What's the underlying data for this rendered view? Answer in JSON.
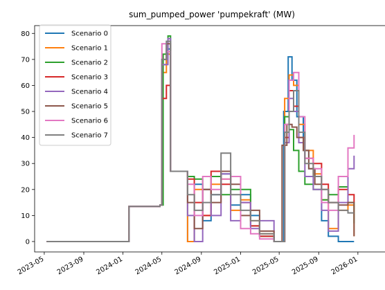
{
  "chart_data": {
    "type": "line",
    "title": "sum_pumped_power 'pumpekraft' (MW)",
    "xlabel": "",
    "ylabel": "",
    "x_ticks": [
      "2023-05",
      "2023-09",
      "2024-01",
      "2024-05",
      "2024-09",
      "2025-01",
      "2025-05",
      "2025-09",
      "2026-01"
    ],
    "y_ticks": [
      0,
      10,
      20,
      30,
      40,
      50,
      60,
      70,
      80
    ],
    "xlim": [
      "2023-04-01",
      "2026-01-25"
    ],
    "ylim": [
      -4,
      83
    ],
    "grid": false,
    "legend_position": "top-left",
    "series": [
      {
        "name": "Scenario 0",
        "color": "#1f77b4",
        "points": [
          [
            "2023-05-08",
            0
          ],
          [
            "2024-01-10",
            0
          ],
          [
            "2024-01-20",
            13.5
          ],
          [
            "2024-04-25",
            14
          ],
          [
            "2024-05-01",
            68
          ],
          [
            "2024-05-15",
            74
          ],
          [
            "2024-05-28",
            27
          ],
          [
            "2024-07-10",
            27
          ],
          [
            "2024-07-20",
            0
          ],
          [
            "2024-08-10",
            22
          ],
          [
            "2024-09-05",
            8
          ],
          [
            "2024-10-01",
            18
          ],
          [
            "2024-11-01",
            26
          ],
          [
            "2024-12-01",
            14
          ],
          [
            "2025-01-01",
            18
          ],
          [
            "2025-02-01",
            10
          ],
          [
            "2025-03-01",
            2
          ],
          [
            "2025-04-15",
            0
          ],
          [
            "2025-05-01",
            0
          ],
          [
            "2025-05-15",
            50
          ],
          [
            "2025-05-29",
            71
          ],
          [
            "2025-06-10",
            62
          ],
          [
            "2025-06-25",
            48
          ],
          [
            "2025-07-15",
            35
          ],
          [
            "2025-08-01",
            28
          ],
          [
            "2025-08-20",
            25
          ],
          [
            "2025-09-10",
            8
          ],
          [
            "2025-10-01",
            2
          ],
          [
            "2025-11-01",
            0
          ],
          [
            "2025-12-10",
            0
          ],
          [
            "2025-12-20",
            0
          ]
        ]
      },
      {
        "name": "Scenario 1",
        "color": "#ff7f0e",
        "points": [
          [
            "2023-05-08",
            0
          ],
          [
            "2024-01-10",
            0
          ],
          [
            "2024-01-20",
            13.5
          ],
          [
            "2024-04-25",
            14
          ],
          [
            "2024-05-01",
            65
          ],
          [
            "2024-05-15",
            72
          ],
          [
            "2024-05-28",
            27
          ],
          [
            "2024-07-10",
            27
          ],
          [
            "2024-07-20",
            0
          ],
          [
            "2024-08-10",
            20
          ],
          [
            "2024-09-05",
            10
          ],
          [
            "2024-10-01",
            22
          ],
          [
            "2024-11-01",
            24
          ],
          [
            "2024-12-01",
            12
          ],
          [
            "2025-01-01",
            16
          ],
          [
            "2025-02-01",
            8
          ],
          [
            "2025-03-01",
            3
          ],
          [
            "2025-04-15",
            0
          ],
          [
            "2025-05-10",
            0
          ],
          [
            "2025-05-18",
            55
          ],
          [
            "2025-06-01",
            64
          ],
          [
            "2025-06-15",
            60
          ],
          [
            "2025-07-01",
            45
          ],
          [
            "2025-07-20",
            35
          ],
          [
            "2025-08-15",
            26
          ],
          [
            "2025-09-10",
            16
          ],
          [
            "2025-10-01",
            5
          ],
          [
            "2025-11-01",
            12
          ],
          [
            "2025-12-01",
            14
          ],
          [
            "2025-12-20",
            2
          ]
        ]
      },
      {
        "name": "Scenario 2",
        "color": "#2ca02c",
        "points": [
          [
            "2023-05-08",
            0
          ],
          [
            "2024-01-10",
            0
          ],
          [
            "2024-01-20",
            13.5
          ],
          [
            "2024-04-25",
            14
          ],
          [
            "2024-05-05",
            72
          ],
          [
            "2024-05-20",
            79
          ],
          [
            "2024-05-28",
            27
          ],
          [
            "2024-07-10",
            27
          ],
          [
            "2024-07-20",
            25
          ],
          [
            "2024-08-10",
            24
          ],
          [
            "2024-09-05",
            20
          ],
          [
            "2024-10-01",
            25
          ],
          [
            "2024-11-01",
            18
          ],
          [
            "2024-12-01",
            20
          ],
          [
            "2025-01-01",
            20
          ],
          [
            "2025-02-01",
            6
          ],
          [
            "2025-03-01",
            2
          ],
          [
            "2025-04-15",
            0
          ],
          [
            "2025-05-10",
            0
          ],
          [
            "2025-05-18",
            48
          ],
          [
            "2025-06-01",
            43
          ],
          [
            "2025-06-15",
            35
          ],
          [
            "2025-07-01",
            27
          ],
          [
            "2025-07-20",
            22
          ],
          [
            "2025-08-15",
            20
          ],
          [
            "2025-09-10",
            16
          ],
          [
            "2025-10-01",
            18
          ],
          [
            "2025-11-01",
            21
          ],
          [
            "2025-12-01",
            15
          ],
          [
            "2025-12-20",
            7
          ]
        ]
      },
      {
        "name": "Scenario 3",
        "color": "#d62728",
        "points": [
          [
            "2023-05-08",
            0
          ],
          [
            "2024-01-10",
            0
          ],
          [
            "2024-01-20",
            13.5
          ],
          [
            "2024-04-25",
            14
          ],
          [
            "2024-05-01",
            55
          ],
          [
            "2024-05-15",
            60
          ],
          [
            "2024-05-28",
            27
          ],
          [
            "2024-07-10",
            27
          ],
          [
            "2024-07-20",
            24
          ],
          [
            "2024-08-10",
            15
          ],
          [
            "2024-09-05",
            10
          ],
          [
            "2024-10-01",
            27
          ],
          [
            "2024-11-01",
            22
          ],
          [
            "2024-12-01",
            25
          ],
          [
            "2025-01-01",
            15
          ],
          [
            "2025-02-01",
            6
          ],
          [
            "2025-03-01",
            2
          ],
          [
            "2025-04-15",
            0
          ],
          [
            "2025-05-10",
            0
          ],
          [
            "2025-05-18",
            40
          ],
          [
            "2025-06-01",
            58
          ],
          [
            "2025-06-15",
            52
          ],
          [
            "2025-07-01",
            40
          ],
          [
            "2025-07-20",
            32
          ],
          [
            "2025-08-15",
            30
          ],
          [
            "2025-09-10",
            22
          ],
          [
            "2025-10-01",
            15
          ],
          [
            "2025-11-01",
            20
          ],
          [
            "2025-12-01",
            18
          ],
          [
            "2025-12-20",
            15
          ]
        ]
      },
      {
        "name": "Scenario 4",
        "color": "#9467bd",
        "points": [
          [
            "2023-05-08",
            0
          ],
          [
            "2024-01-10",
            0
          ],
          [
            "2024-01-20",
            13.5
          ],
          [
            "2024-04-25",
            14
          ],
          [
            "2024-05-01",
            68
          ],
          [
            "2024-05-20",
            78
          ],
          [
            "2024-05-28",
            27
          ],
          [
            "2024-07-10",
            27
          ],
          [
            "2024-07-20",
            10
          ],
          [
            "2024-08-10",
            0
          ],
          [
            "2024-09-05",
            20
          ],
          [
            "2024-10-01",
            10
          ],
          [
            "2024-11-01",
            26
          ],
          [
            "2024-12-01",
            8
          ],
          [
            "2025-01-01",
            15
          ],
          [
            "2025-02-01",
            5
          ],
          [
            "2025-03-01",
            8
          ],
          [
            "2025-04-15",
            0
          ],
          [
            "2025-05-10",
            0
          ],
          [
            "2025-05-18",
            38
          ],
          [
            "2025-06-01",
            55
          ],
          [
            "2025-06-15",
            50
          ],
          [
            "2025-07-01",
            38
          ],
          [
            "2025-07-20",
            25
          ],
          [
            "2025-08-15",
            20
          ],
          [
            "2025-09-10",
            12
          ],
          [
            "2025-10-01",
            4
          ],
          [
            "2025-11-01",
            15
          ],
          [
            "2025-12-01",
            28
          ],
          [
            "2025-12-20",
            33
          ]
        ]
      },
      {
        "name": "Scenario 5",
        "color": "#8c564b",
        "points": [
          [
            "2023-05-08",
            0
          ],
          [
            "2024-01-10",
            0
          ],
          [
            "2024-01-20",
            13.5
          ],
          [
            "2024-04-25",
            14
          ],
          [
            "2024-05-01",
            70
          ],
          [
            "2024-05-15",
            76
          ],
          [
            "2024-05-28",
            27
          ],
          [
            "2024-07-10",
            27
          ],
          [
            "2024-07-20",
            15
          ],
          [
            "2024-08-10",
            5
          ],
          [
            "2024-09-05",
            20
          ],
          [
            "2024-10-01",
            15
          ],
          [
            "2024-11-01",
            27
          ],
          [
            "2024-12-01",
            22
          ],
          [
            "2025-01-01",
            10
          ],
          [
            "2025-02-01",
            12
          ],
          [
            "2025-03-01",
            4
          ],
          [
            "2025-04-15",
            0
          ],
          [
            "2025-05-01",
            0
          ],
          [
            "2025-05-10",
            37
          ],
          [
            "2025-05-25",
            45
          ],
          [
            "2025-06-10",
            44
          ],
          [
            "2025-06-25",
            40
          ],
          [
            "2025-07-15",
            35
          ],
          [
            "2025-08-01",
            28
          ],
          [
            "2025-08-20",
            22
          ],
          [
            "2025-09-10",
            20
          ],
          [
            "2025-10-01",
            15
          ],
          [
            "2025-11-01",
            14
          ],
          [
            "2025-12-01",
            15
          ],
          [
            "2025-12-20",
            2
          ]
        ]
      },
      {
        "name": "Scenario 6",
        "color": "#e377c2",
        "points": [
          [
            "2023-05-08",
            0
          ],
          [
            "2024-01-10",
            0
          ],
          [
            "2024-01-20",
            13.5
          ],
          [
            "2024-04-25",
            14
          ],
          [
            "2024-05-01",
            76
          ],
          [
            "2024-05-15",
            73
          ],
          [
            "2024-05-28",
            27
          ],
          [
            "2024-07-10",
            27
          ],
          [
            "2024-07-20",
            22
          ],
          [
            "2024-08-10",
            10
          ],
          [
            "2024-09-05",
            25
          ],
          [
            "2024-10-01",
            20
          ],
          [
            "2024-11-01",
            24
          ],
          [
            "2024-12-01",
            25
          ],
          [
            "2025-01-01",
            5
          ],
          [
            "2025-02-01",
            3
          ],
          [
            "2025-03-01",
            1
          ],
          [
            "2025-04-15",
            0
          ],
          [
            "2025-05-10",
            0
          ],
          [
            "2025-05-18",
            45
          ],
          [
            "2025-06-01",
            62
          ],
          [
            "2025-06-15",
            65
          ],
          [
            "2025-07-01",
            48
          ],
          [
            "2025-07-20",
            32
          ],
          [
            "2025-08-15",
            28
          ],
          [
            "2025-09-10",
            15
          ],
          [
            "2025-10-01",
            12
          ],
          [
            "2025-11-01",
            25
          ],
          [
            "2025-12-01",
            36
          ],
          [
            "2025-12-20",
            41
          ]
        ]
      },
      {
        "name": "Scenario 7",
        "color": "#7f7f7f",
        "points": [
          [
            "2023-05-08",
            0
          ],
          [
            "2024-01-10",
            0
          ],
          [
            "2024-01-20",
            13.5
          ],
          [
            "2024-04-25",
            14
          ],
          [
            "2024-05-01",
            70
          ],
          [
            "2024-05-15",
            77
          ],
          [
            "2024-05-28",
            27
          ],
          [
            "2024-07-10",
            27
          ],
          [
            "2024-07-20",
            18
          ],
          [
            "2024-08-10",
            12
          ],
          [
            "2024-09-05",
            15
          ],
          [
            "2024-10-01",
            18
          ],
          [
            "2024-11-01",
            34
          ],
          [
            "2024-12-01",
            18
          ],
          [
            "2025-01-01",
            12
          ],
          [
            "2025-02-01",
            8
          ],
          [
            "2025-03-01",
            3
          ],
          [
            "2025-04-15",
            0
          ],
          [
            "2025-05-10",
            0
          ],
          [
            "2025-05-18",
            42
          ],
          [
            "2025-06-01",
            50
          ],
          [
            "2025-06-15",
            58
          ],
          [
            "2025-07-01",
            42
          ],
          [
            "2025-07-20",
            30
          ],
          [
            "2025-08-15",
            25
          ],
          [
            "2025-09-10",
            20
          ],
          [
            "2025-10-01",
            15
          ],
          [
            "2025-11-01",
            12
          ],
          [
            "2025-12-01",
            11
          ],
          [
            "2025-12-20",
            11
          ]
        ]
      }
    ]
  }
}
